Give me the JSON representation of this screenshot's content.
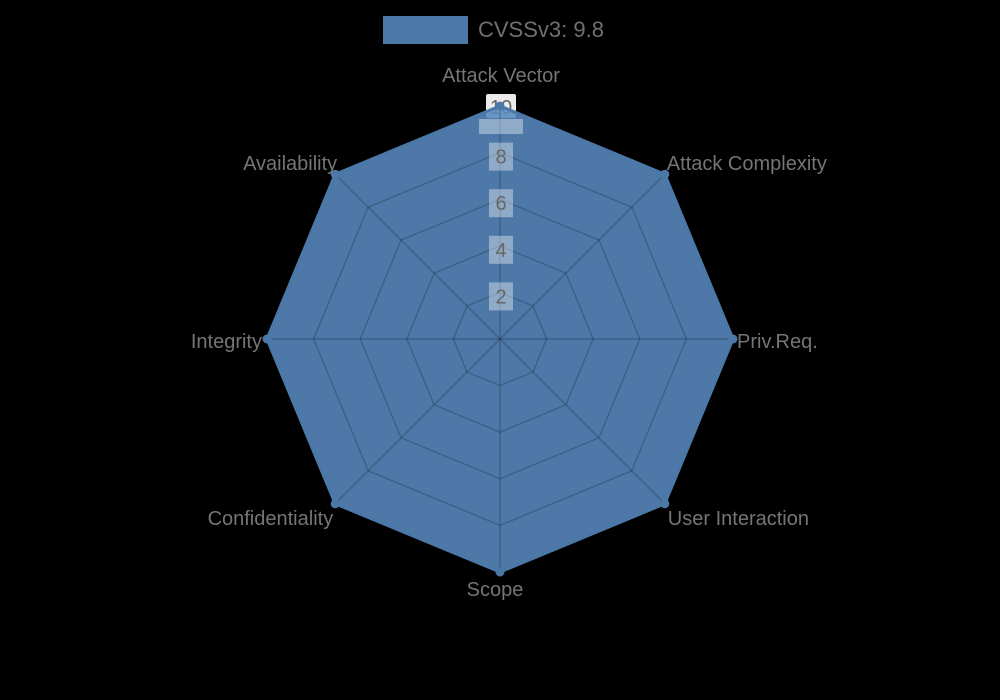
{
  "page": {
    "background": "#000000"
  },
  "legend": {
    "label": "CVSSv3: 9.8",
    "swatch_color": "#4D79A8"
  },
  "chart_data": {
    "type": "radar",
    "title": "CVSSv3: 9.8",
    "categories": [
      "Attack Vector",
      "Attack Complexity",
      "Priv.Req.",
      "User Interaction",
      "Scope",
      "Confidentiality",
      "Integrity",
      "Availability"
    ],
    "series": [
      {
        "name": "CVSSv3: 9.8",
        "values": [
          10,
          10,
          10,
          10,
          10,
          10,
          10,
          10
        ]
      }
    ],
    "ticks": [
      2,
      4,
      6,
      8,
      10
    ],
    "rlim": [
      0,
      10
    ],
    "grid": true,
    "legend_position": "top",
    "axis_start": "top",
    "direction": "clockwise"
  },
  "style": {
    "fill_color": "rgb(88,137,190)",
    "fill_opacity": 0.88,
    "border_color": "#4C78A8",
    "point_color": "#4C78A8",
    "grid_color": "rgba(0,0,0,0.2)",
    "tick_backdrop_color": "rgba(255,255,255,0.38)",
    "tick_backdrop_max_color": "rgba(255,255,255,0.92)",
    "label_color": "#757575",
    "tick_text_color": "#666666",
    "legend_text_color": "#707070"
  }
}
